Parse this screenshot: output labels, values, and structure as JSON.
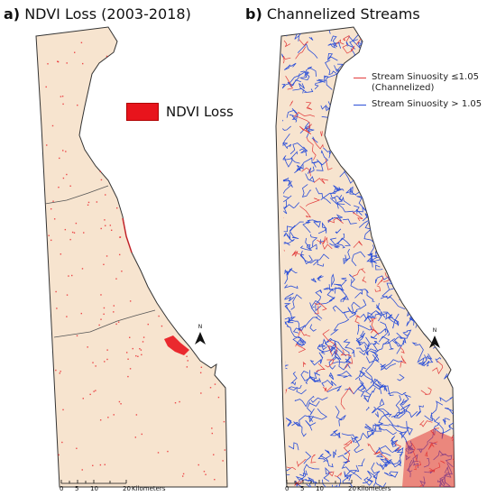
{
  "panel_a": {
    "letter": "a)",
    "title": "NDVI Loss (2003-2018)",
    "legend_label": "NDVI Loss",
    "scale": {
      "ticks": [
        "0",
        "5",
        "10",
        "20"
      ],
      "unit": "Kilometers"
    },
    "north_label": "N"
  },
  "panel_b": {
    "letter": "b)",
    "title": "Channelized Streams",
    "legend": [
      {
        "label": "Stream Sinuosity ≤1.05",
        "sublabel": "(Channelized)",
        "color": "#e23b3b"
      },
      {
        "label": "Stream Sinuosity > 1.05",
        "sublabel": "",
        "color": "#2b4fd8"
      }
    ],
    "scale": {
      "ticks": [
        "0",
        "5",
        "10",
        "20"
      ],
      "unit": "Kilometers"
    },
    "north_label": "N"
  },
  "colors": {
    "land": "#f7e4cf",
    "ndvi_loss": "#e8141c",
    "stream_blue": "#2b4fd8",
    "stream_red": "#e23b3b",
    "outline": "#333333"
  }
}
